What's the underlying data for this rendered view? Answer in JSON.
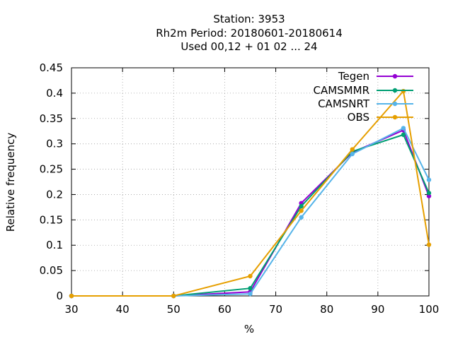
{
  "chart_data": {
    "type": "line",
    "title_lines": [
      "Station:     3953",
      "Rh2m  Period: 20180601-20180614",
      "Used  00,12  + 01 02 ... 24"
    ],
    "xlabel": "%",
    "ylabel": "Relative frequency",
    "xlim": [
      30,
      100
    ],
    "ylim": [
      0,
      0.45
    ],
    "xticks": [
      30,
      40,
      50,
      60,
      70,
      80,
      90,
      100
    ],
    "yticks": [
      0,
      0.05,
      0.1,
      0.15,
      0.2,
      0.25,
      0.3,
      0.35,
      0.4,
      0.45
    ],
    "ytick_labels": [
      "0",
      "0.05",
      "0.1",
      "0.15",
      "0.2",
      "0.25",
      "0.3",
      "0.35",
      "0.4",
      "0.45"
    ],
    "grid": true,
    "legend_position": "top-right",
    "x": [
      30,
      50,
      65,
      75,
      85,
      95,
      100
    ],
    "series": [
      {
        "name": "Tegen",
        "color": "#9400d3",
        "values": [
          0,
          0,
          0.008,
          0.183,
          0.283,
          0.327,
          0.197
        ]
      },
      {
        "name": "CAMSMMR",
        "color": "#009e73",
        "values": [
          0,
          0,
          0.015,
          0.177,
          0.285,
          0.318,
          0.203
        ]
      },
      {
        "name": "CAMSNRT",
        "color": "#56b4e9",
        "values": [
          0,
          0,
          0.004,
          0.155,
          0.28,
          0.331,
          0.229
        ]
      },
      {
        "name": "OBS",
        "color": "#e69f00",
        "values": [
          0,
          0,
          0.039,
          0.168,
          0.289,
          0.404,
          0.101
        ]
      }
    ]
  }
}
